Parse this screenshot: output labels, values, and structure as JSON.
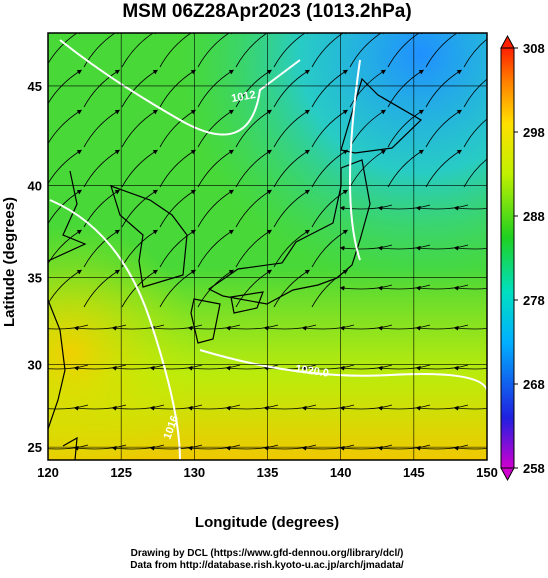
{
  "header": {
    "title": "MSM 06Z28Apr2023 (1013.2hPa)"
  },
  "map": {
    "projection": "mercator",
    "xlim": [
      120,
      150
    ],
    "ylim": [
      24.2,
      47.5
    ],
    "xticks": [
      120,
      125,
      130,
      135,
      140,
      145,
      150
    ],
    "yticks": [
      25,
      30,
      35,
      40,
      45
    ],
    "xlabel": "Longitude (degrees)",
    "ylabel": "Latitude  (degrees)",
    "contour_labels": [
      "1012",
      "1020.0",
      "1016"
    ]
  },
  "colorbar": {
    "lim": [
      258,
      308
    ],
    "ticks": [
      258,
      268,
      278,
      288,
      298,
      308
    ]
  },
  "footer": {
    "credit1": "Drawing by DCL (https://www.gfd-dennou.org/library/dcl/)",
    "credit2": "Data from http://database.rish.kyoto-u.ac.jp/arch/jmadata/"
  }
}
